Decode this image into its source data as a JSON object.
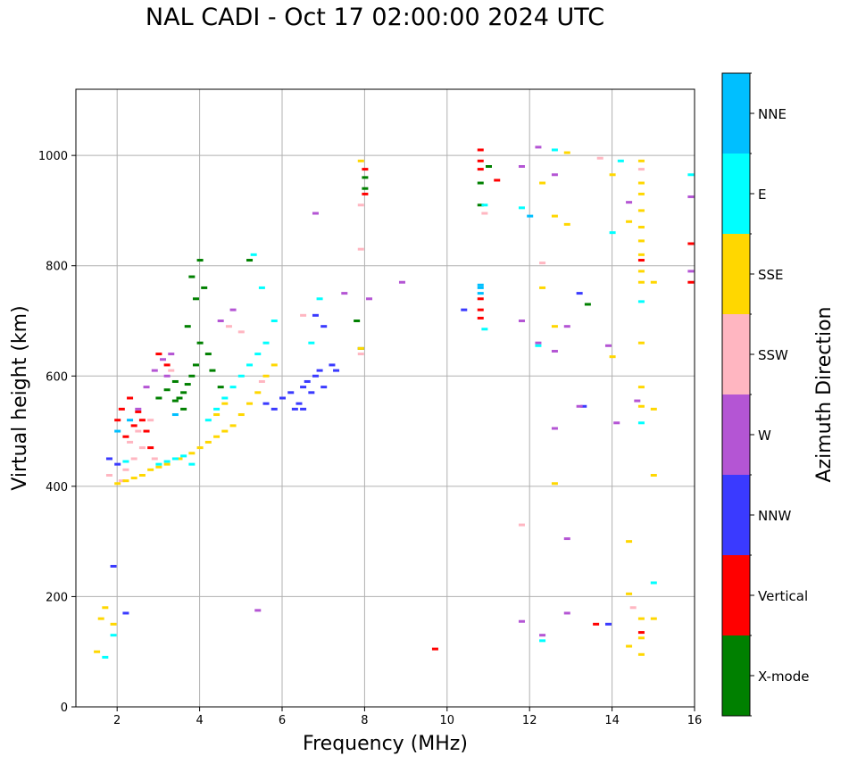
{
  "title": "NAL CADI - Oct 17 02:00:00 2024 UTC",
  "chart_data": {
    "type": "scatter",
    "title": "NAL CADI - Oct 17 02:00:00 2024 UTC",
    "xlabel": "Frequency (MHz)",
    "ylabel": "Virtual height (km)",
    "xlim": [
      1,
      16
    ],
    "ylim": [
      0,
      1120
    ],
    "xticks": [
      2,
      4,
      6,
      8,
      10,
      12,
      14,
      16
    ],
    "yticks": [
      0,
      200,
      400,
      600,
      800,
      1000
    ],
    "grid": true,
    "colorbar": {
      "label": "Azimuth Direction",
      "categories": [
        "X-mode",
        "Vertical",
        "NNW",
        "W",
        "SSW",
        "SSE",
        "E",
        "NNE"
      ],
      "colors": [
        "#008000",
        "#ff0000",
        "#3a3aff",
        "#b455d4",
        "#ffb6c1",
        "#ffd700",
        "#00ffff",
        "#00bfff"
      ]
    },
    "series": [
      {
        "name": "X-mode",
        "points": [
          [
            3.0,
            560
          ],
          [
            3.2,
            575
          ],
          [
            3.4,
            590
          ],
          [
            3.5,
            560
          ],
          [
            3.6,
            570
          ],
          [
            3.7,
            585
          ],
          [
            3.8,
            600
          ],
          [
            3.9,
            620
          ],
          [
            4.0,
            660
          ],
          [
            4.0,
            810
          ],
          [
            3.8,
            780
          ],
          [
            3.9,
            740
          ],
          [
            3.7,
            690
          ],
          [
            4.1,
            760
          ],
          [
            4.2,
            640
          ],
          [
            4.3,
            610
          ],
          [
            4.5,
            580
          ],
          [
            3.6,
            540
          ],
          [
            3.4,
            555
          ],
          [
            5.2,
            810
          ],
          [
            7.8,
            700
          ],
          [
            7.9,
            650
          ],
          [
            8.0,
            960
          ],
          [
            8.0,
            940
          ],
          [
            10.8,
            950
          ],
          [
            10.8,
            910
          ],
          [
            13.4,
            730
          ],
          [
            11.0,
            980
          ]
        ]
      },
      {
        "name": "Vertical",
        "points": [
          [
            2.0,
            520
          ],
          [
            2.2,
            490
          ],
          [
            2.4,
            510
          ],
          [
            2.6,
            520
          ],
          [
            2.8,
            470
          ],
          [
            3.0,
            640
          ],
          [
            2.1,
            540
          ],
          [
            2.3,
            560
          ],
          [
            2.5,
            535
          ],
          [
            2.7,
            500
          ],
          [
            3.2,
            620
          ],
          [
            8.0,
            975
          ],
          [
            8.0,
            930
          ],
          [
            10.8,
            1010
          ],
          [
            10.8,
            990
          ],
          [
            10.8,
            975
          ],
          [
            10.8,
            740
          ],
          [
            10.8,
            720
          ],
          [
            10.8,
            705
          ],
          [
            11.2,
            955
          ],
          [
            9.7,
            105
          ],
          [
            13.6,
            150
          ],
          [
            14.7,
            810
          ],
          [
            15.9,
            840
          ],
          [
            15.9,
            770
          ],
          [
            14.7,
            135
          ]
        ]
      },
      {
        "name": "NNW",
        "points": [
          [
            6.0,
            560
          ],
          [
            6.2,
            570
          ],
          [
            6.4,
            550
          ],
          [
            6.5,
            580
          ],
          [
            6.6,
            590
          ],
          [
            6.7,
            570
          ],
          [
            6.8,
            600
          ],
          [
            6.5,
            540
          ],
          [
            6.3,
            540
          ],
          [
            6.9,
            610
          ],
          [
            7.0,
            580
          ],
          [
            7.2,
            620
          ],
          [
            5.8,
            540
          ],
          [
            5.6,
            550
          ],
          [
            6.8,
            710
          ],
          [
            7.0,
            690
          ],
          [
            7.3,
            610
          ],
          [
            1.9,
            255
          ],
          [
            2.2,
            170
          ],
          [
            2.0,
            440
          ],
          [
            1.8,
            450
          ],
          [
            13.2,
            750
          ],
          [
            13.3,
            545
          ],
          [
            10.4,
            720
          ],
          [
            13.9,
            150
          ]
        ]
      },
      {
        "name": "W",
        "points": [
          [
            2.9,
            610
          ],
          [
            3.1,
            630
          ],
          [
            3.2,
            600
          ],
          [
            2.7,
            580
          ],
          [
            2.5,
            540
          ],
          [
            3.3,
            640
          ],
          [
            4.5,
            700
          ],
          [
            4.8,
            720
          ],
          [
            5.4,
            175
          ],
          [
            7.5,
            750
          ],
          [
            8.1,
            740
          ],
          [
            8.9,
            770
          ],
          [
            6.8,
            895
          ],
          [
            11.8,
            980
          ],
          [
            12.6,
            965
          ],
          [
            11.8,
            700
          ],
          [
            12.2,
            660
          ],
          [
            12.6,
            645
          ],
          [
            12.9,
            690
          ],
          [
            12.9,
            305
          ],
          [
            12.9,
            170
          ],
          [
            12.3,
            130
          ],
          [
            11.8,
            155
          ],
          [
            13.9,
            655
          ],
          [
            14.1,
            515
          ],
          [
            14.4,
            915
          ],
          [
            14.6,
            555
          ],
          [
            15.9,
            925
          ],
          [
            15.9,
            790
          ],
          [
            13.2,
            545
          ],
          [
            12.2,
            1015
          ],
          [
            12.6,
            505
          ]
        ]
      },
      {
        "name": "SSW",
        "points": [
          [
            2.2,
            430
          ],
          [
            2.4,
            450
          ],
          [
            2.6,
            470
          ],
          [
            2.3,
            480
          ],
          [
            2.5,
            500
          ],
          [
            2.8,
            520
          ],
          [
            2.9,
            450
          ],
          [
            2.1,
            410
          ],
          [
            1.8,
            420
          ],
          [
            4.7,
            690
          ],
          [
            5.0,
            680
          ],
          [
            5.5,
            590
          ],
          [
            3.3,
            610
          ],
          [
            7.9,
            910
          ],
          [
            7.9,
            830
          ],
          [
            7.9,
            640
          ],
          [
            6.5,
            710
          ],
          [
            12.3,
            805
          ],
          [
            11.8,
            330
          ],
          [
            13.7,
            995
          ],
          [
            14.7,
            975
          ],
          [
            14.5,
            180
          ],
          [
            10.9,
            895
          ]
        ]
      },
      {
        "name": "SSE",
        "points": [
          [
            2.0,
            405
          ],
          [
            2.2,
            410
          ],
          [
            2.4,
            415
          ],
          [
            2.6,
            420
          ],
          [
            2.8,
            430
          ],
          [
            3.0,
            435
          ],
          [
            3.2,
            440
          ],
          [
            3.5,
            450
          ],
          [
            3.8,
            460
          ],
          [
            4.0,
            470
          ],
          [
            4.2,
            480
          ],
          [
            4.4,
            490
          ],
          [
            4.6,
            500
          ],
          [
            4.8,
            510
          ],
          [
            5.0,
            530
          ],
          [
            5.2,
            550
          ],
          [
            5.4,
            570
          ],
          [
            5.6,
            600
          ],
          [
            5.8,
            620
          ],
          [
            4.4,
            530
          ],
          [
            4.6,
            550
          ],
          [
            1.6,
            160
          ],
          [
            1.7,
            180
          ],
          [
            1.9,
            150
          ],
          [
            1.5,
            100
          ],
          [
            7.9,
            990
          ],
          [
            7.9,
            650
          ],
          [
            12.3,
            760
          ],
          [
            12.3,
            950
          ],
          [
            12.6,
            890
          ],
          [
            12.6,
            690
          ],
          [
            12.6,
            405
          ],
          [
            12.9,
            875
          ],
          [
            12.9,
            1005
          ],
          [
            14.0,
            965
          ],
          [
            14.0,
            635
          ],
          [
            14.4,
            880
          ],
          [
            14.4,
            300
          ],
          [
            14.4,
            205
          ],
          [
            14.4,
            110
          ],
          [
            14.7,
            990
          ],
          [
            14.7,
            950
          ],
          [
            14.7,
            930
          ],
          [
            14.7,
            900
          ],
          [
            14.7,
            870
          ],
          [
            14.7,
            845
          ],
          [
            14.7,
            820
          ],
          [
            14.7,
            790
          ],
          [
            14.7,
            770
          ],
          [
            14.7,
            660
          ],
          [
            14.7,
            580
          ],
          [
            14.7,
            545
          ],
          [
            14.7,
            160
          ],
          [
            14.7,
            125
          ],
          [
            14.7,
            95
          ],
          [
            15.0,
            770
          ],
          [
            15.0,
            540
          ],
          [
            15.0,
            420
          ],
          [
            15.0,
            160
          ]
        ]
      },
      {
        "name": "E",
        "points": [
          [
            3.0,
            440
          ],
          [
            3.2,
            445
          ],
          [
            3.4,
            450
          ],
          [
            3.6,
            455
          ],
          [
            3.8,
            440
          ],
          [
            4.2,
            520
          ],
          [
            4.4,
            540
          ],
          [
            4.6,
            560
          ],
          [
            4.8,
            580
          ],
          [
            5.0,
            600
          ],
          [
            5.2,
            620
          ],
          [
            5.4,
            640
          ],
          [
            5.6,
            660
          ],
          [
            5.8,
            700
          ],
          [
            5.5,
            760
          ],
          [
            5.3,
            820
          ],
          [
            6.7,
            660
          ],
          [
            6.9,
            740
          ],
          [
            2.2,
            445
          ],
          [
            1.9,
            130
          ],
          [
            1.7,
            90
          ],
          [
            10.9,
            910
          ],
          [
            10.9,
            685
          ],
          [
            11.8,
            905
          ],
          [
            12.2,
            655
          ],
          [
            12.3,
            120
          ],
          [
            12.6,
            1010
          ],
          [
            14.0,
            860
          ],
          [
            14.2,
            990
          ],
          [
            14.7,
            735
          ],
          [
            14.7,
            515
          ],
          [
            15.0,
            225
          ],
          [
            15.9,
            965
          ]
        ]
      },
      {
        "name": "NNE",
        "points": [
          [
            2.0,
            500
          ],
          [
            2.3,
            520
          ],
          [
            3.4,
            530
          ],
          [
            10.8,
            750
          ],
          [
            10.8,
            760
          ],
          [
            10.8,
            765
          ],
          [
            12.0,
            890
          ]
        ]
      }
    ]
  }
}
